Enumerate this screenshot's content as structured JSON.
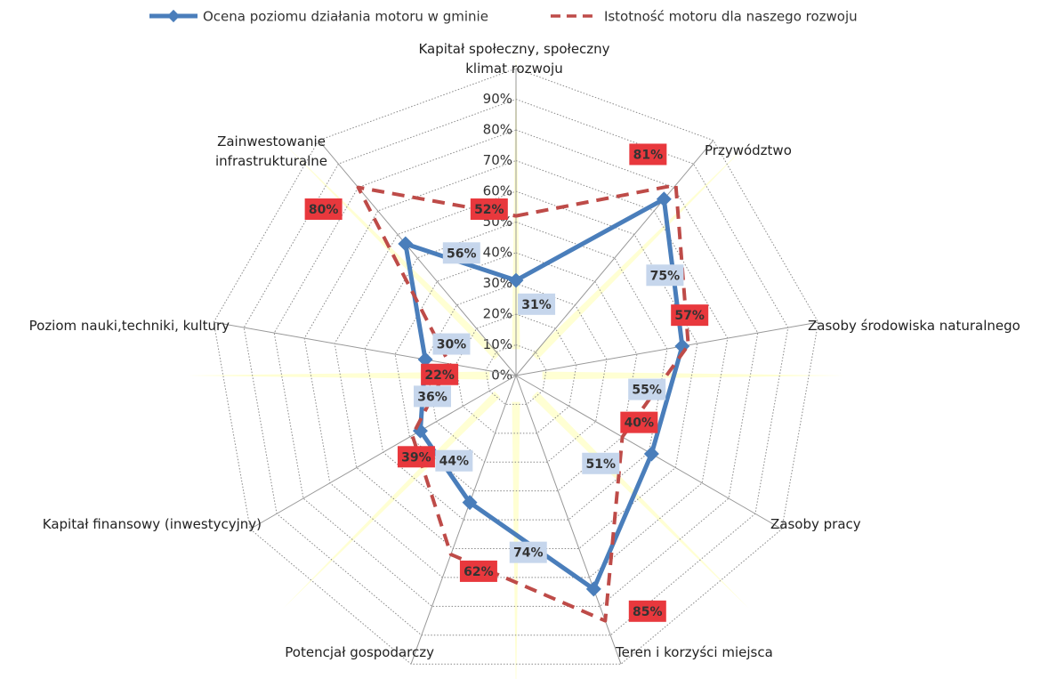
{
  "chart_data": {
    "type": "radar",
    "categories": [
      "Kapitał społeczny, społeczny klimat rozwoju",
      "Przywództwo",
      "Zasoby środowiska naturalnego",
      "Zasoby pracy",
      "Teren i korzyści miejsca",
      "Potencjał gospodarczy",
      "Kapitał finansowy (inwestycyjny)",
      "Poziom nauki,techniki, kultury",
      "Zainwestowanie infrastrukturalne"
    ],
    "series": [
      {
        "name": "Ocena poziomu działania motoru w gminie",
        "color": "#4a7ebb",
        "line_style": "solid",
        "values": [
          31,
          75,
          55,
          51,
          74,
          44,
          36,
          30,
          56
        ],
        "value_labels": [
          "31%",
          "75%",
          "55%",
          "51%",
          "74%",
          "44%",
          "36%",
          "30%",
          "56%"
        ]
      },
      {
        "name": "Istotność motoru dla naszego rozwoju",
        "color": "#be4b48",
        "line_style": "dashed",
        "values": [
          52,
          81,
          57,
          40,
          85,
          62,
          39,
          22,
          80
        ],
        "value_labels": [
          "52%",
          "81%",
          "57%",
          "40%",
          "85%",
          "62%",
          "39%",
          "22%",
          "80%"
        ]
      }
    ],
    "ylim": [
      0,
      100
    ],
    "yticks": [
      {
        "value": 0,
        "label": "0%"
      },
      {
        "value": 10,
        "label": "10%"
      },
      {
        "value": 20,
        "label": "20%"
      },
      {
        "value": 30,
        "label": "30%"
      },
      {
        "value": 40,
        "label": "40%"
      },
      {
        "value": 50,
        "label": "50%"
      },
      {
        "value": 60,
        "label": "60%"
      },
      {
        "value": 70,
        "label": "70%"
      },
      {
        "value": 80,
        "label": "80%"
      },
      {
        "value": 90,
        "label": "90%"
      }
    ],
    "grid": true,
    "legend": "top"
  }
}
